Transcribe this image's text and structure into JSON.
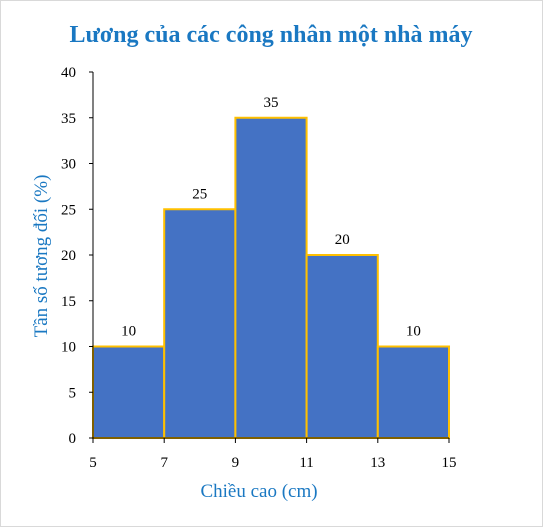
{
  "chart_data": {
    "type": "bar",
    "title": "Lương của các công nhân một nhà máy",
    "xlabel": "Chiều cao (cm)",
    "ylabel": "Tần số tương đối (%)",
    "bin_edges": [
      5,
      7,
      9,
      11,
      13,
      15
    ],
    "values": [
      10,
      25,
      35,
      20,
      10
    ],
    "data_labels": [
      "10",
      "25",
      "35",
      "20",
      "10"
    ],
    "xlim": [
      5,
      15
    ],
    "ylim": [
      0,
      40
    ],
    "y_ticks": [
      0,
      5,
      10,
      15,
      20,
      25,
      30,
      35,
      40
    ],
    "x_ticks": [
      5,
      7,
      9,
      11,
      13,
      15
    ],
    "grid": false,
    "legend": "none",
    "colors": {
      "bar_fill": "#4472c4",
      "bar_edge": "#ffc000",
      "title": "#1a78c2",
      "axis_title": "#1a78c2",
      "axis": "#000000"
    }
  }
}
